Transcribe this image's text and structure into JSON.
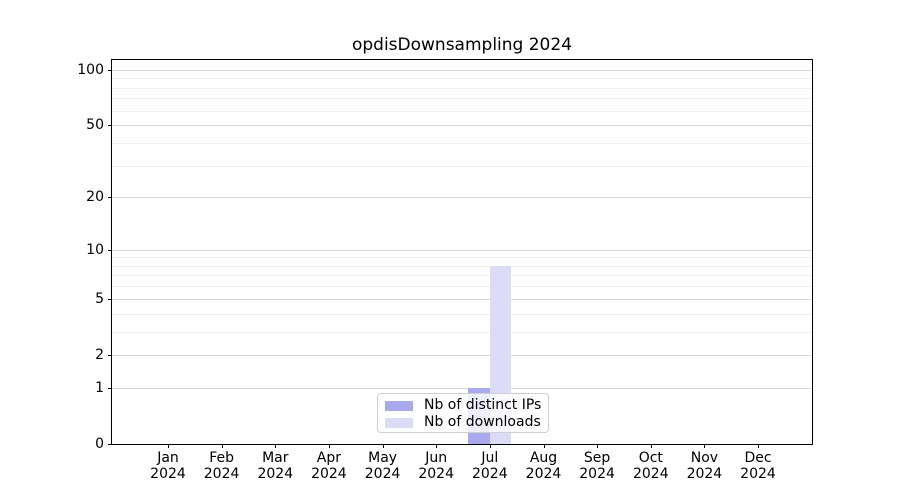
{
  "title": "opdisDownsampling 2024",
  "colors": {
    "bar_distinct_ips": "#a9a9ee",
    "bar_downloads": "#dcdcf7",
    "grid_major": "#d6d6d6",
    "grid_minor": "#efefef",
    "axis": "#000000",
    "legend_border": "#d0d0d0",
    "background": "#ffffff"
  },
  "chart_data": {
    "type": "bar",
    "title": "opdisDownsampling 2024",
    "categories": [
      "Jan",
      "Feb",
      "Mar",
      "Apr",
      "May",
      "Jun",
      "Jul",
      "Aug",
      "Sep",
      "Oct",
      "Nov",
      "Dec"
    ],
    "year_label": "2024",
    "series": [
      {
        "name": "Nb of distinct IPs",
        "color": "#a9a9ee",
        "values": [
          0,
          0,
          0,
          0,
          0,
          0,
          1,
          0,
          0,
          0,
          0,
          0
        ]
      },
      {
        "name": "Nb of downloads",
        "color": "#dcdcf7",
        "values": [
          0,
          0,
          0,
          0,
          0,
          0,
          8,
          0,
          0,
          0,
          0,
          0
        ]
      }
    ],
    "xlabel": "",
    "ylabel": "",
    "yscale": "log1p",
    "ylim": [
      0,
      113
    ],
    "yticks": [
      0,
      1,
      2,
      5,
      10,
      20,
      50,
      100
    ],
    "minor_gridlines": [
      3,
      4,
      6,
      7,
      8,
      9,
      30,
      40,
      60,
      70,
      80,
      90
    ],
    "grid": "horizontal",
    "legend_position": "lower center"
  }
}
